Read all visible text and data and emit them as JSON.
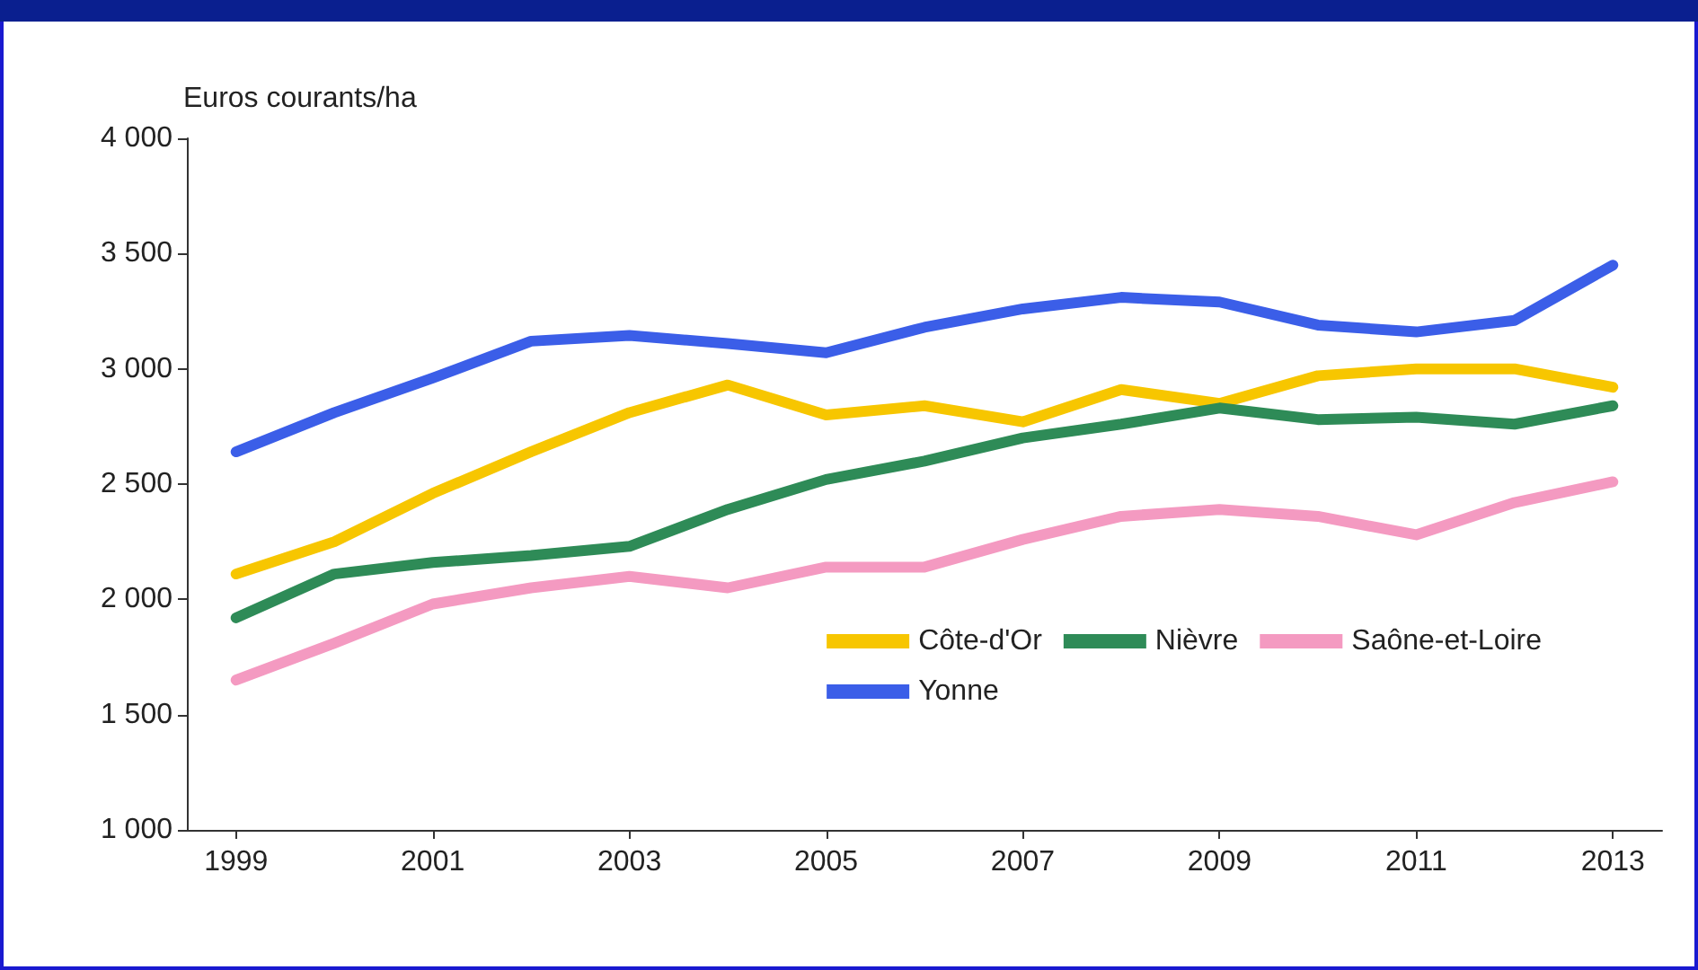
{
  "chart_data": {
    "type": "line",
    "ylabel": "Euros courants/ha",
    "x": [
      1999,
      2000,
      2001,
      2002,
      2003,
      2004,
      2005,
      2006,
      2007,
      2008,
      2009,
      2010,
      2011,
      2012,
      2013
    ],
    "series": [
      {
        "name": "Côte-d'Or",
        "color": "#f7c600",
        "values": [
          2110,
          2250,
          2460,
          2640,
          2810,
          2930,
          2800,
          2840,
          2770,
          2910,
          2850,
          2970,
          3000,
          3000,
          2920
        ]
      },
      {
        "name": "Nièvre",
        "color": "#2e8b57",
        "values": [
          1920,
          2110,
          2160,
          2190,
          2230,
          2390,
          2520,
          2600,
          2700,
          2760,
          2830,
          2780,
          2790,
          2760,
          2840
        ]
      },
      {
        "name": "Saône-et-Loire",
        "color": "#f49ac1",
        "values": [
          1650,
          1810,
          1980,
          2050,
          2100,
          2050,
          2140,
          2140,
          2260,
          2360,
          2390,
          2360,
          2280,
          2420,
          2510
        ]
      },
      {
        "name": "Yonne",
        "color": "#3b5ee8",
        "values": [
          2640,
          2810,
          2960,
          3120,
          3145,
          3110,
          3070,
          3180,
          3260,
          3310,
          3290,
          3190,
          3160,
          3210,
          3450
        ]
      }
    ],
    "xlim": [
      1998.5,
      2013.5
    ],
    "xticks": [
      1999,
      2001,
      2003,
      2005,
      2007,
      2009,
      2011,
      2013
    ],
    "ylim": [
      1000,
      4000
    ],
    "yticks": [
      {
        "value": 1000,
        "label": "1 000"
      },
      {
        "value": 1500,
        "label": "1 500"
      },
      {
        "value": 2000,
        "label": "2 000"
      },
      {
        "value": 2500,
        "label": "2 500"
      },
      {
        "value": 3000,
        "label": "3 000"
      },
      {
        "value": 3500,
        "label": "3 500"
      },
      {
        "value": 4000,
        "label": "4 000"
      }
    ],
    "grid": false,
    "legend": "bottom right",
    "marker": "none",
    "line_style": "solid"
  }
}
